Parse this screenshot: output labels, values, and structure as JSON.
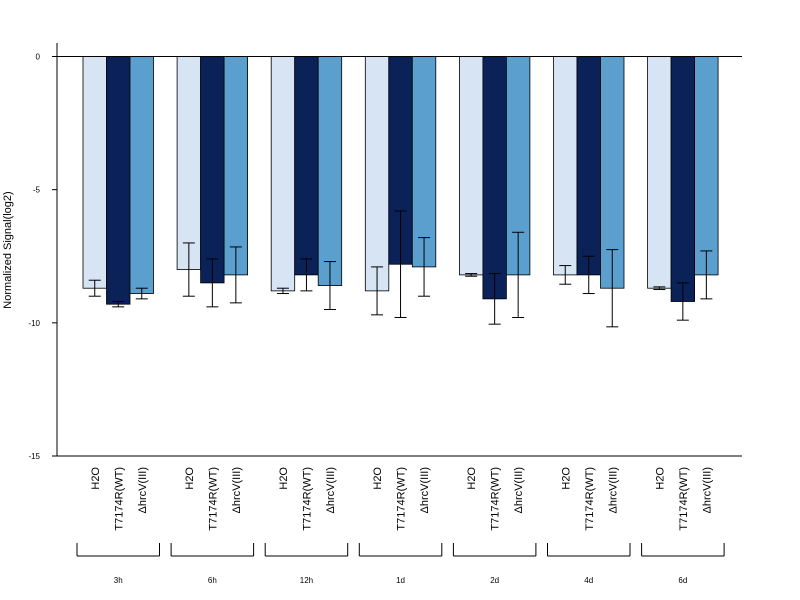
{
  "chart_data": {
    "type": "bar",
    "title": "",
    "xlabel": "",
    "ylabel": "Normalized Signal(log2)",
    "ylim": [
      -15,
      0
    ],
    "yticks": [
      0,
      -5,
      -10,
      -15
    ],
    "grid": false,
    "groups": [
      "3h",
      "6h",
      "12h",
      "1d",
      "2d",
      "4d",
      "6d"
    ],
    "series": [
      {
        "name": "H2O",
        "color": "#d6e4f3",
        "values": [
          -8.7,
          -8.0,
          -8.8,
          -8.8,
          -8.2,
          -8.2,
          -8.7
        ],
        "error": [
          0.3,
          1.0,
          0.1,
          0.9,
          0.05,
          0.35,
          0.05
        ]
      },
      {
        "name": "T7174R(WT)",
        "color": "#0b2259",
        "values": [
          -9.3,
          -8.5,
          -8.2,
          -7.8,
          -9.1,
          -8.2,
          -9.2
        ],
        "error": [
          0.1,
          0.9,
          0.6,
          2.0,
          0.95,
          0.7,
          0.7
        ]
      },
      {
        "name": "ΔhrcV(III)",
        "color": "#5a9fcd",
        "values": [
          -8.9,
          -8.2,
          -8.6,
          -7.9,
          -8.2,
          -8.7,
          -8.2
        ],
        "error": [
          0.2,
          1.05,
          0.9,
          1.1,
          1.6,
          1.45,
          0.9
        ]
      }
    ]
  }
}
